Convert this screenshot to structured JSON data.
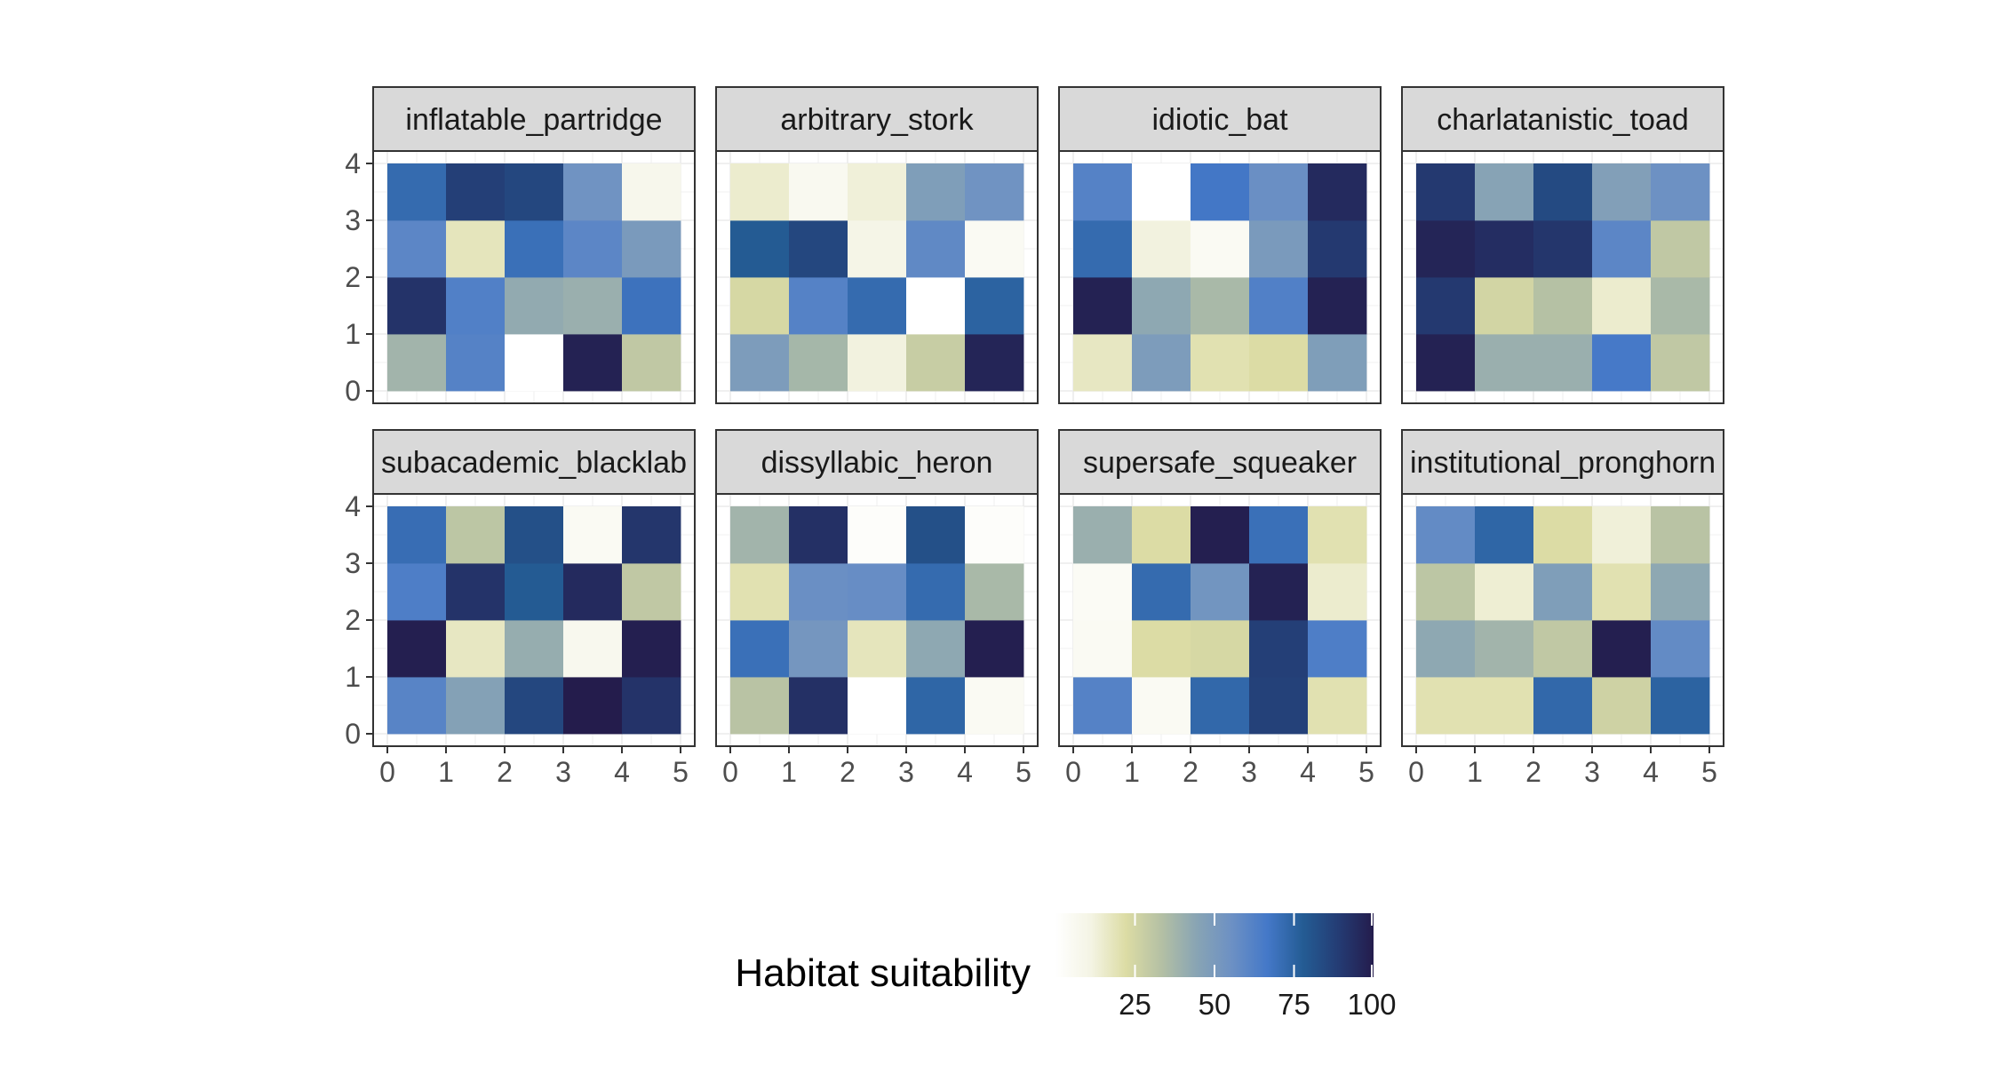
{
  "chart_data": {
    "type": "heatmap",
    "facet_layout": "4 columns x 2 rows",
    "x_ticks": [
      0,
      1,
      2,
      3,
      4,
      5
    ],
    "y_ticks": [
      0,
      1,
      2,
      3,
      4
    ],
    "x_range": [
      0,
      5
    ],
    "y_range": [
      0,
      4
    ],
    "cell_x_centers": [
      0.5,
      1.5,
      2.5,
      3.5,
      4.5
    ],
    "cell_y_centers": [
      0.5,
      1.5,
      2.5,
      3.5
    ],
    "grid": true,
    "legend": {
      "title": "Habitat suitability",
      "position": "bottom",
      "range": [
        0,
        100
      ],
      "ticks": [
        25,
        50,
        75,
        100
      ],
      "tick_labels": [
        "25",
        "50",
        "75",
        "100"
      ],
      "palette": [
        "#ffffff",
        "#f4f4e4",
        "#dcdca4",
        "#b4c0a4",
        "#88a4b4",
        "#6c90c4",
        "#4478c8",
        "#245c94",
        "#243c74",
        "#241c4c"
      ]
    },
    "panels": [
      {
        "title": "inflatable_partridge",
        "values": [
          [
            38,
            62,
            0,
            98,
            30
          ],
          [
            92,
            63,
            42,
            40,
            69
          ],
          [
            60,
            18,
            70,
            60,
            50
          ],
          [
            72,
            88,
            85,
            54,
            8
          ]
        ]
      },
      {
        "title": "arbitrary_stork",
        "values": [
          [
            49,
            37,
            12,
            28,
            97
          ],
          [
            24,
            62,
            72,
            0,
            75
          ],
          [
            78,
            85,
            10,
            59,
            5
          ],
          [
            15,
            6,
            13,
            48,
            54
          ]
        ]
      },
      {
        "title": "idiotic_bat",
        "values": [
          [
            17,
            49,
            20,
            22,
            48
          ],
          [
            98,
            43,
            36,
            63,
            98
          ],
          [
            72,
            12,
            5,
            50,
            90
          ],
          [
            62,
            0,
            67,
            56,
            95
          ]
        ]
      },
      {
        "title": "charlatanistic_toad",
        "values": [
          [
            98,
            40,
            40,
            66,
            30
          ],
          [
            90,
            25,
            33,
            15,
            36
          ],
          [
            97,
            94,
            91,
            60,
            30
          ],
          [
            90,
            45,
            84,
            47,
            55
          ]
        ]
      },
      {
        "title": "subacademic_blacklab",
        "values": [
          [
            61,
            46,
            85,
            100,
            92
          ],
          [
            99,
            17,
            41,
            7,
            99
          ],
          [
            64,
            92,
            78,
            95,
            30
          ],
          [
            71,
            31,
            82,
            5,
            91
          ]
        ]
      },
      {
        "title": "dissyllabic_heron",
        "values": [
          [
            32,
            93,
            0,
            74,
            5
          ],
          [
            70,
            52,
            18,
            43,
            99
          ],
          [
            20,
            56,
            57,
            72,
            36
          ],
          [
            38,
            93,
            2,
            82,
            2
          ]
        ]
      },
      {
        "title": "supersafe_squeaker",
        "values": [
          [
            62,
            5,
            73,
            87,
            20
          ],
          [
            5,
            22,
            24,
            88,
            64
          ],
          [
            4,
            72,
            53,
            98,
            15
          ],
          [
            40,
            22,
            99,
            70,
            20
          ]
        ]
      },
      {
        "title": "institutional_pronghorn",
        "values": [
          [
            20,
            20,
            73,
            26,
            75
          ],
          [
            43,
            38,
            30,
            99,
            58
          ],
          [
            31,
            14,
            48,
            20,
            43
          ],
          [
            58,
            74,
            22,
            13,
            32
          ]
        ]
      }
    ]
  }
}
